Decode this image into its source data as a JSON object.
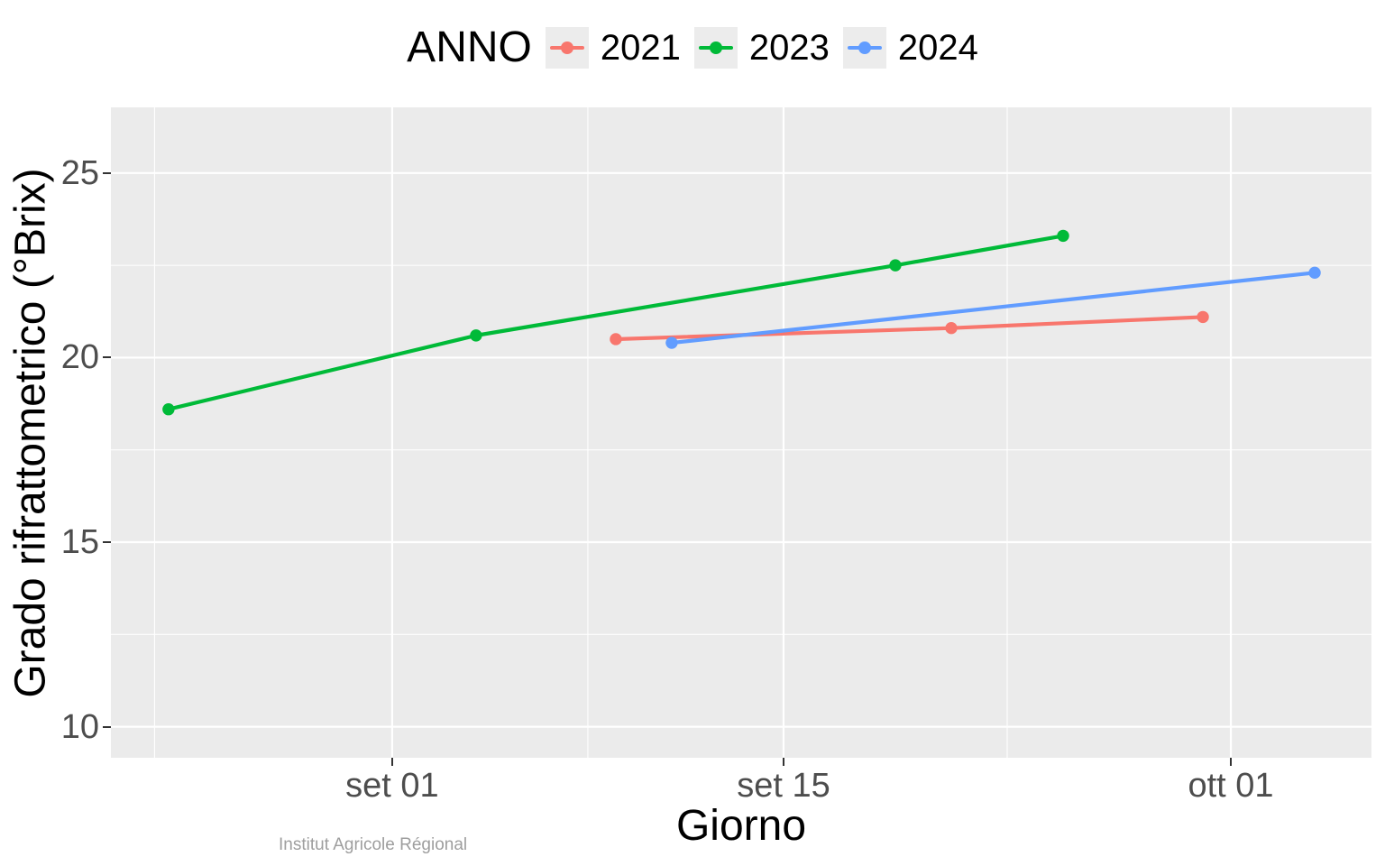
{
  "legend": {
    "title": "ANNO",
    "items": [
      {
        "label": "2021",
        "color": "#F8766D"
      },
      {
        "label": "2023",
        "color": "#00BA38"
      },
      {
        "label": "2024",
        "color": "#619CFF"
      }
    ]
  },
  "watermark": "Institut Agricole Régional",
  "chart_data": {
    "type": "line",
    "title": "",
    "xlabel": "Giorno",
    "ylabel": "Grado rifrattometrico (°Brix)",
    "legend_position": "top",
    "grid": "on",
    "panel_background": "#ebebeb",
    "x_axis": {
      "unit": "days relative to set 01",
      "tick_labels": [
        "set 01",
        "set 15",
        "ott 01"
      ],
      "tick_days": [
        0,
        14,
        30
      ],
      "minor_grid_days": [
        -8.5,
        7,
        22
      ],
      "range_days": [
        -10.06,
        35.03
      ]
    },
    "y_axis": {
      "tick_labels": [
        "10",
        "15",
        "20",
        "25"
      ],
      "ticks": [
        10,
        15,
        20,
        25
      ],
      "minor_grid": [
        12.5,
        17.5,
        22.5
      ],
      "range": [
        9.16,
        26.78
      ]
    },
    "series": [
      {
        "name": "2021",
        "color": "#F8766D",
        "points": [
          {
            "date": "set 09",
            "day": 8,
            "value": 20.5
          },
          {
            "date": "set 21",
            "day": 20,
            "value": 20.8
          },
          {
            "date": "set 30",
            "day": 29,
            "value": 21.1
          }
        ]
      },
      {
        "name": "2023",
        "color": "#00BA38",
        "points": [
          {
            "date": "ago 24",
            "day": -8,
            "value": 18.6
          },
          {
            "date": "set 04",
            "day": 3,
            "value": 20.6
          },
          {
            "date": "set 19",
            "day": 18,
            "value": 22.5
          },
          {
            "date": "set 25",
            "day": 24,
            "value": 23.3
          }
        ]
      },
      {
        "name": "2024",
        "color": "#619CFF",
        "points": [
          {
            "date": "set 11",
            "day": 10,
            "value": 20.4
          },
          {
            "date": "ott 04",
            "day": 33,
            "value": 22.3
          }
        ]
      }
    ]
  }
}
